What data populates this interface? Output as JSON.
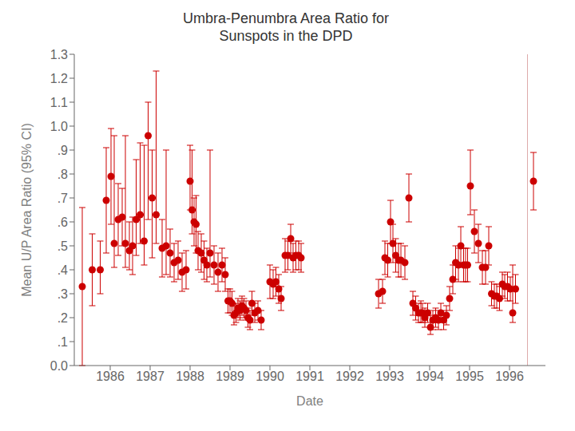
{
  "chart_data": {
    "type": "scatter",
    "title": "Umbra-Penumbra Area Ratio for\nSunspots in the DPD",
    "xlabel": "Date",
    "ylabel": "Mean U/P Area Ratio (95% CI)",
    "color": "#cc0000",
    "marker": "circle",
    "grid": false,
    "xlim": [
      1985.1,
      1996.9
    ],
    "xticks": [
      1986,
      1987,
      1988,
      1989,
      1990,
      1991,
      1992,
      1993,
      1994,
      1995,
      1996
    ],
    "ylim": [
      0.0,
      1.3
    ],
    "yticks": [
      {
        "value": 0.0,
        "label": "0.0"
      },
      {
        "value": 0.1,
        "label": ".1"
      },
      {
        "value": 0.2,
        "label": ".2"
      },
      {
        "value": 0.3,
        "label": ".3"
      },
      {
        "value": 0.4,
        "label": ".4"
      },
      {
        "value": 0.5,
        "label": ".5"
      },
      {
        "value": 0.6,
        "label": ".6"
      },
      {
        "value": 0.7,
        "label": ".7"
      },
      {
        "value": 0.8,
        "label": ".8"
      },
      {
        "value": 0.9,
        "label": ".9"
      },
      {
        "value": 1.0,
        "label": "1.0"
      },
      1.1,
      1.2,
      1.3
    ],
    "vlines": [
      {
        "x": 1996.45,
        "color": "#ddaaaa"
      }
    ],
    "x": [
      1985.3,
      1985.55,
      1985.75,
      1985.9,
      1986.02,
      1986.1,
      1986.2,
      1986.3,
      1986.38,
      1986.48,
      1986.56,
      1986.65,
      1986.75,
      1986.85,
      1986.95,
      1987.05,
      1987.15,
      1987.3,
      1987.4,
      1987.5,
      1987.6,
      1987.7,
      1987.8,
      1987.9,
      1988.0,
      1988.05,
      1988.1,
      1988.15,
      1988.2,
      1988.28,
      1988.35,
      1988.42,
      1988.5,
      1988.6,
      1988.7,
      1988.8,
      1988.88,
      1988.95,
      1989.0,
      1989.05,
      1989.1,
      1989.15,
      1989.2,
      1989.25,
      1989.3,
      1989.35,
      1989.4,
      1989.45,
      1989.5,
      1989.55,
      1989.62,
      1989.7,
      1989.78,
      1990.0,
      1990.08,
      1990.15,
      1990.22,
      1990.28,
      1990.38,
      1990.45,
      1990.52,
      1990.58,
      1990.65,
      1990.72,
      1990.78,
      1992.72,
      1992.82,
      1992.88,
      1992.95,
      1993.02,
      1993.08,
      1993.15,
      1993.22,
      1993.28,
      1993.38,
      1993.48,
      1993.58,
      1993.65,
      1993.72,
      1993.78,
      1993.82,
      1993.88,
      1993.95,
      1994.02,
      1994.08,
      1994.15,
      1994.22,
      1994.28,
      1994.35,
      1994.42,
      1994.5,
      1994.58,
      1994.65,
      1994.72,
      1994.78,
      1994.85,
      1994.9,
      1994.95,
      1995.02,
      1995.12,
      1995.22,
      1995.32,
      1995.4,
      1995.48,
      1995.55,
      1995.62,
      1995.68,
      1995.75,
      1995.82,
      1995.88,
      1995.95,
      1996.02,
      1996.08,
      1996.15,
      1996.6
    ],
    "values": [
      0.33,
      0.4,
      0.4,
      0.69,
      0.79,
      0.51,
      0.61,
      0.62,
      0.51,
      0.48,
      0.5,
      0.61,
      0.63,
      0.52,
      0.96,
      0.7,
      0.63,
      0.49,
      0.5,
      0.47,
      0.43,
      0.44,
      0.39,
      0.4,
      0.77,
      0.65,
      0.6,
      0.59,
      0.48,
      0.47,
      0.44,
      0.42,
      0.47,
      0.42,
      0.39,
      0.42,
      0.38,
      0.27,
      0.27,
      0.26,
      0.21,
      0.22,
      0.24,
      0.23,
      0.25,
      0.24,
      0.23,
      0.2,
      0.19,
      0.26,
      0.22,
      0.23,
      0.19,
      0.35,
      0.34,
      0.35,
      0.32,
      0.28,
      0.46,
      0.46,
      0.53,
      0.45,
      0.46,
      0.46,
      0.45,
      0.3,
      0.31,
      0.45,
      0.44,
      0.6,
      0.51,
      0.46,
      0.44,
      0.44,
      0.43,
      0.7,
      0.26,
      0.24,
      0.22,
      0.22,
      0.22,
      0.2,
      0.22,
      0.16,
      0.19,
      0.2,
      0.19,
      0.22,
      0.19,
      0.21,
      0.28,
      0.36,
      0.43,
      0.42,
      0.5,
      0.42,
      0.42,
      0.42,
      0.75,
      0.56,
      0.51,
      0.41,
      0.41,
      0.5,
      0.3,
      0.29,
      0.29,
      0.28,
      0.34,
      0.33,
      0.33,
      0.32,
      0.22,
      0.32,
      0.77
    ],
    "yerr_lo": [
      0.33,
      0.15,
      0.1,
      0.22,
      0.2,
      0.1,
      0.15,
      0.12,
      0.1,
      0.08,
      0.12,
      0.15,
      0.12,
      0.1,
      0.35,
      0.25,
      0.12,
      0.12,
      0.12,
      0.1,
      0.08,
      0.08,
      0.08,
      0.08,
      0.12,
      0.1,
      0.1,
      0.12,
      0.08,
      0.08,
      0.08,
      0.07,
      0.1,
      0.08,
      0.08,
      0.07,
      0.07,
      0.05,
      0.05,
      0.05,
      0.04,
      0.04,
      0.04,
      0.04,
      0.04,
      0.04,
      0.04,
      0.04,
      0.04,
      0.05,
      0.04,
      0.04,
      0.04,
      0.07,
      0.06,
      0.06,
      0.06,
      0.05,
      0.07,
      0.06,
      0.06,
      0.06,
      0.06,
      0.06,
      0.06,
      0.06,
      0.05,
      0.07,
      0.07,
      0.09,
      0.08,
      0.07,
      0.07,
      0.07,
      0.07,
      0.1,
      0.05,
      0.05,
      0.04,
      0.04,
      0.04,
      0.04,
      0.04,
      0.03,
      0.04,
      0.04,
      0.04,
      0.04,
      0.04,
      0.04,
      0.05,
      0.06,
      0.07,
      0.07,
      0.08,
      0.07,
      0.07,
      0.07,
      0.12,
      0.09,
      0.08,
      0.07,
      0.07,
      0.08,
      0.05,
      0.05,
      0.05,
      0.05,
      0.05,
      0.05,
      0.06,
      0.05,
      0.04,
      0.06,
      0.12
    ],
    "yerr_hi": [
      0.33,
      0.15,
      0.12,
      0.22,
      0.2,
      0.45,
      0.15,
      0.12,
      0.45,
      0.12,
      0.12,
      0.25,
      0.3,
      0.4,
      0.14,
      0.2,
      0.6,
      0.12,
      0.4,
      0.1,
      0.08,
      0.08,
      0.08,
      0.08,
      0.15,
      0.25,
      0.1,
      0.12,
      0.08,
      0.08,
      0.08,
      0.07,
      0.43,
      0.08,
      0.08,
      0.07,
      0.07,
      0.05,
      0.05,
      0.05,
      0.04,
      0.04,
      0.04,
      0.04,
      0.04,
      0.04,
      0.04,
      0.04,
      0.04,
      0.05,
      0.04,
      0.04,
      0.04,
      0.07,
      0.06,
      0.06,
      0.06,
      0.05,
      0.07,
      0.06,
      0.06,
      0.06,
      0.06,
      0.06,
      0.06,
      0.06,
      0.05,
      0.07,
      0.07,
      0.09,
      0.08,
      0.07,
      0.07,
      0.07,
      0.07,
      0.1,
      0.05,
      0.05,
      0.04,
      0.05,
      0.04,
      0.04,
      0.04,
      0.05,
      0.04,
      0.04,
      0.04,
      0.04,
      0.04,
      0.04,
      0.05,
      0.06,
      0.07,
      0.07,
      0.08,
      0.07,
      0.07,
      0.07,
      0.15,
      0.09,
      0.08,
      0.07,
      0.07,
      0.08,
      0.05,
      0.05,
      0.05,
      0.05,
      0.05,
      0.05,
      0.06,
      0.05,
      0.2,
      0.06,
      0.12
    ]
  }
}
